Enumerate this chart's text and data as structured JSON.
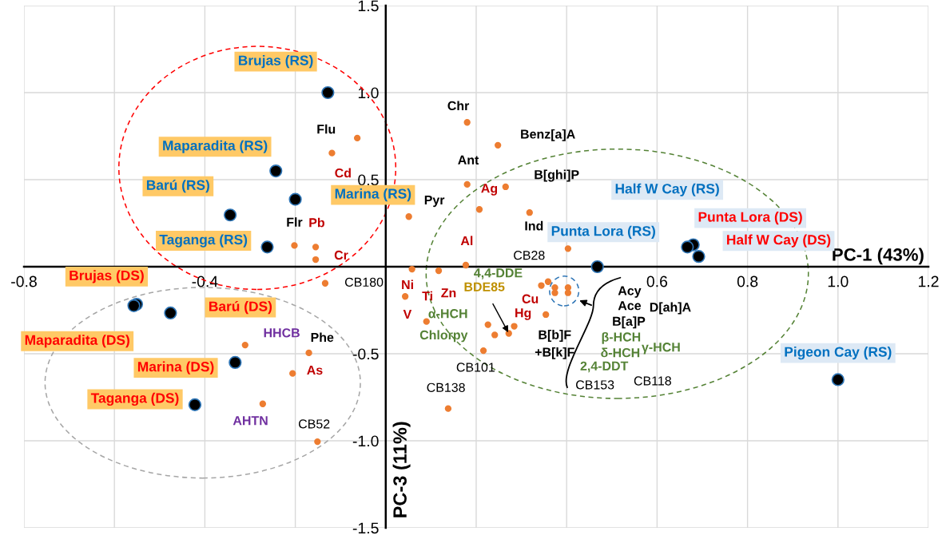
{
  "chart_data": {
    "type": "scatter",
    "xlabel": "PC-1 (43%)",
    "ylabel": "PC-3 (11%)",
    "xlim": [
      -0.8,
      1.2
    ],
    "ylim": [
      -1.5,
      1.5
    ],
    "xticks": [
      -0.8,
      {
        "value": -0.6,
        "label": null
      },
      -0.4,
      {
        "value": -0.2,
        "label": null
      },
      {
        "value": 0,
        "label": null
      },
      {
        "value": 0.2,
        "label": null
      },
      {
        "value": 0.4,
        "label": null
      },
      0.6,
      0.8,
      {
        "value": 1,
        "label": "1.0"
      },
      1.2
    ],
    "yticks": [
      -1.5,
      {
        "value": -1,
        "label": "-1.0"
      },
      -0.5,
      {
        "value": 0,
        "label": null
      },
      0.5,
      {
        "value": 1,
        "label": "1.0"
      },
      1.5
    ],
    "grid": true,
    "marker": "circle",
    "series": [
      {
        "color": "#000000",
        "x": [
          -0.128,
          -0.243,
          -0.2,
          -0.344,
          -0.262,
          0.468,
          0.68,
          0.667,
          0.692,
          1.0,
          -0.551,
          -0.476,
          -0.557,
          -0.333,
          -0.422
        ],
        "values": [
          1.0,
          0.55,
          0.387,
          0.297,
          0.113,
          0.0,
          0.126,
          0.113,
          0.059,
          -0.649,
          -0.216,
          -0.266,
          -0.224,
          -0.55,
          -0.793
        ]
      },
      {
        "color": "#ed7d31",
        "x": [
          -0.063,
          -0.119,
          -0.202,
          -0.155,
          -0.155,
          -0.134,
          0.18,
          0.248,
          0.18,
          0.265,
          0.207,
          0.051,
          0.318,
          0.403,
          0.177,
          0.058,
          0.117,
          0.043,
          0.09,
          0.226,
          0.241,
          0.272,
          0.284,
          0.216,
          0.138,
          0.359,
          0.344,
          0.354,
          -0.311,
          -0.17,
          -0.206,
          -0.272,
          -0.151,
          0.374,
          0.374,
          0.403,
          0.403
        ],
        "values": [
          0.739,
          0.653,
          0.122,
          0.113,
          0.041,
          -0.095,
          0.829,
          0.698,
          0.473,
          0.459,
          0.329,
          0.288,
          0.311,
          0.104,
          0.009,
          -0.014,
          -0.023,
          -0.171,
          -0.315,
          -0.333,
          -0.392,
          -0.383,
          -0.342,
          -0.482,
          -0.815,
          -0.086,
          -0.108,
          -0.275,
          -0.45,
          -0.495,
          -0.613,
          -0.788,
          -1.005,
          -0.12,
          -0.15,
          -0.12,
          -0.15
        ]
      }
    ],
    "annotations": [
      {
        "text": "Brujas (RS)",
        "x": -0.128,
        "y": 1.0
      },
      "Maparadita (RS)",
      {
        "text": "Marina (RS)",
        "x": -0.2,
        "y": 0.387
      },
      {
        "text": "Barú (RS)",
        "x": -0.344,
        "y": 0.297
      },
      "Taganga (RS)",
      "Punta Lora (RS)",
      "Half W Cay (RS)",
      "Punta Lora (DS)",
      {
        "text": "Half W Cay (DS)",
        "x": 0.692,
        "y": 0.059
      },
      {
        "text": "Pigeon Cay (RS)",
        "x": 1.0,
        "y": -0.649
      },
      {
        "text": "Brujas (DS)",
        "x": -0.551,
        "y": -0.216
      },
      {
        "text": "Barú (DS)",
        "x": -0.476,
        "y": -0.266
      },
      {
        "text": "Maparadita (DS)",
        "x": -0.557,
        "y": -0.224
      },
      "Marina (DS)",
      "Taganga (DS)",
      {
        "text": "Flu",
        "x": -0.063,
        "y": 0.739
      },
      {
        "text": "Cd",
        "x": -0.119,
        "y": 0.653
      },
      {
        "text": "Flr",
        "x": -0.202,
        "y": 0.122
      },
      {
        "text": "Pb",
        "x": -0.155,
        "y": 0.113
      },
      {
        "text": "Cr",
        "x": -0.155,
        "y": 0.041
      },
      {
        "text": "CB180",
        "x": -0.134,
        "y": -0.095
      },
      {
        "text": "Chr",
        "x": 0.18,
        "y": 0.829
      },
      {
        "text": "Benz[a]A",
        "x": 0.248,
        "y": 0.698
      },
      {
        "text": "Ant",
        "x": 0.18,
        "y": 0.473
      },
      {
        "text": "B[ghi]P",
        "x": 0.265,
        "y": 0.459
      },
      {
        "text": "Ag",
        "x": 0.207,
        "y": 0.329
      },
      {
        "text": "Pyr",
        "x": 0.051,
        "y": 0.288
      },
      {
        "text": "Ind",
        "x": 0.318,
        "y": 0.311
      },
      {
        "text": "CB28",
        "x": 0.403,
        "y": 0.104
      },
      {
        "text": "Al",
        "x": 0.177,
        "y": 0.009
      },
      {
        "text": "Ni",
        "x": 0.058,
        "y": -0.014
      },
      {
        "text": "Zn",
        "x": 0.117,
        "y": -0.023
      },
      {
        "text": "V",
        "x": 0.043,
        "y": -0.171
      },
      {
        "text": "Ti",
        "x": 0.09,
        "y": -0.315
      },
      {
        "text": "α-HCH",
        "x": 0.226,
        "y": -0.333
      },
      {
        "text": "Chlorpy",
        "x": 0.241,
        "y": -0.392
      },
      {
        "text": "BDE85",
        "x": 0.272,
        "y": -0.383
      },
      {
        "text": "Hg",
        "x": 0.284,
        "y": -0.342
      },
      {
        "text": "CB101",
        "x": 0.216,
        "y": -0.482
      },
      {
        "text": "CB138",
        "x": 0.138,
        "y": -0.815
      },
      {
        "text": "4,4-DDE",
        "x": 0.359,
        "y": -0.086
      },
      {
        "text": "Cu",
        "x": 0.344,
        "y": -0.108
      },
      {
        "text": "B[b]F\n+B[k]F",
        "x": 0.354,
        "y": -0.275
      },
      {
        "text": "HHCB",
        "x": -0.311,
        "y": -0.45
      },
      {
        "text": "Phe",
        "x": -0.17,
        "y": -0.495
      },
      {
        "text": "As",
        "x": -0.206,
        "y": -0.613
      },
      {
        "text": "AHTN",
        "x": -0.272,
        "y": -0.788
      },
      {
        "text": "CB52",
        "x": -0.151,
        "y": -1.005
      },
      "Acy",
      "Ace",
      "D[ah]A",
      "B[a]P",
      "β-HCH",
      "δ-HCH",
      "γ-HCH",
      "2,4-DDT",
      "CB153",
      "CB118"
    ]
  }
}
